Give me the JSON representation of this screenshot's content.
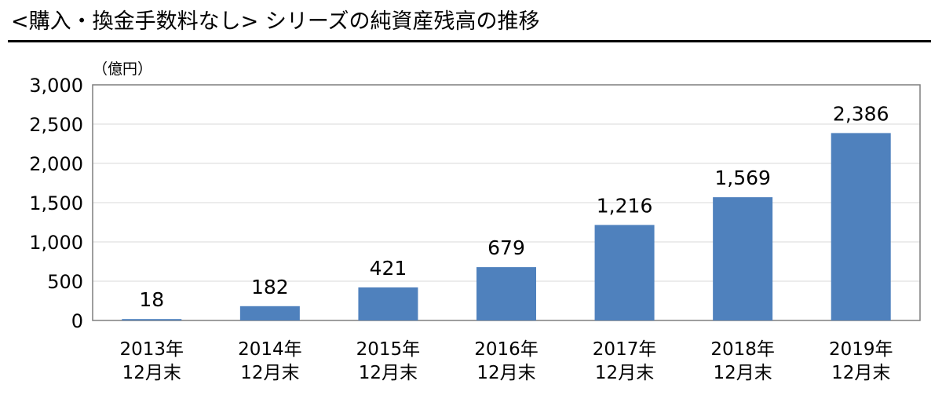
{
  "header": {
    "title": "<購入・換金手数料なし> シリーズの純資産残高の推移"
  },
  "chart_data": {
    "type": "bar",
    "unit_label": "（億円）",
    "categories": [
      [
        "2013年",
        "12月末"
      ],
      [
        "2014年",
        "12月末"
      ],
      [
        "2015年",
        "12月末"
      ],
      [
        "2016年",
        "12月末"
      ],
      [
        "2017年",
        "12月末"
      ],
      [
        "2018年",
        "12月末"
      ],
      [
        "2019年",
        "12月末"
      ]
    ],
    "values": [
      18,
      182,
      421,
      679,
      1216,
      1569,
      2386
    ],
    "data_labels": [
      "18",
      "182",
      "421",
      "679",
      "1,216",
      "1,569",
      "2,386"
    ],
    "ylim": [
      0,
      3000
    ],
    "yticks": [
      0,
      500,
      1000,
      1500,
      2000,
      2500,
      3000
    ],
    "ytick_labels": [
      "0",
      "500",
      "1,000",
      "1,500",
      "2,000",
      "2,500",
      "3,000"
    ],
    "grid": true,
    "bar_color": "#4f81bd",
    "grid_color": "#d9d9d9",
    "frame_color": "#7f7f7f"
  }
}
